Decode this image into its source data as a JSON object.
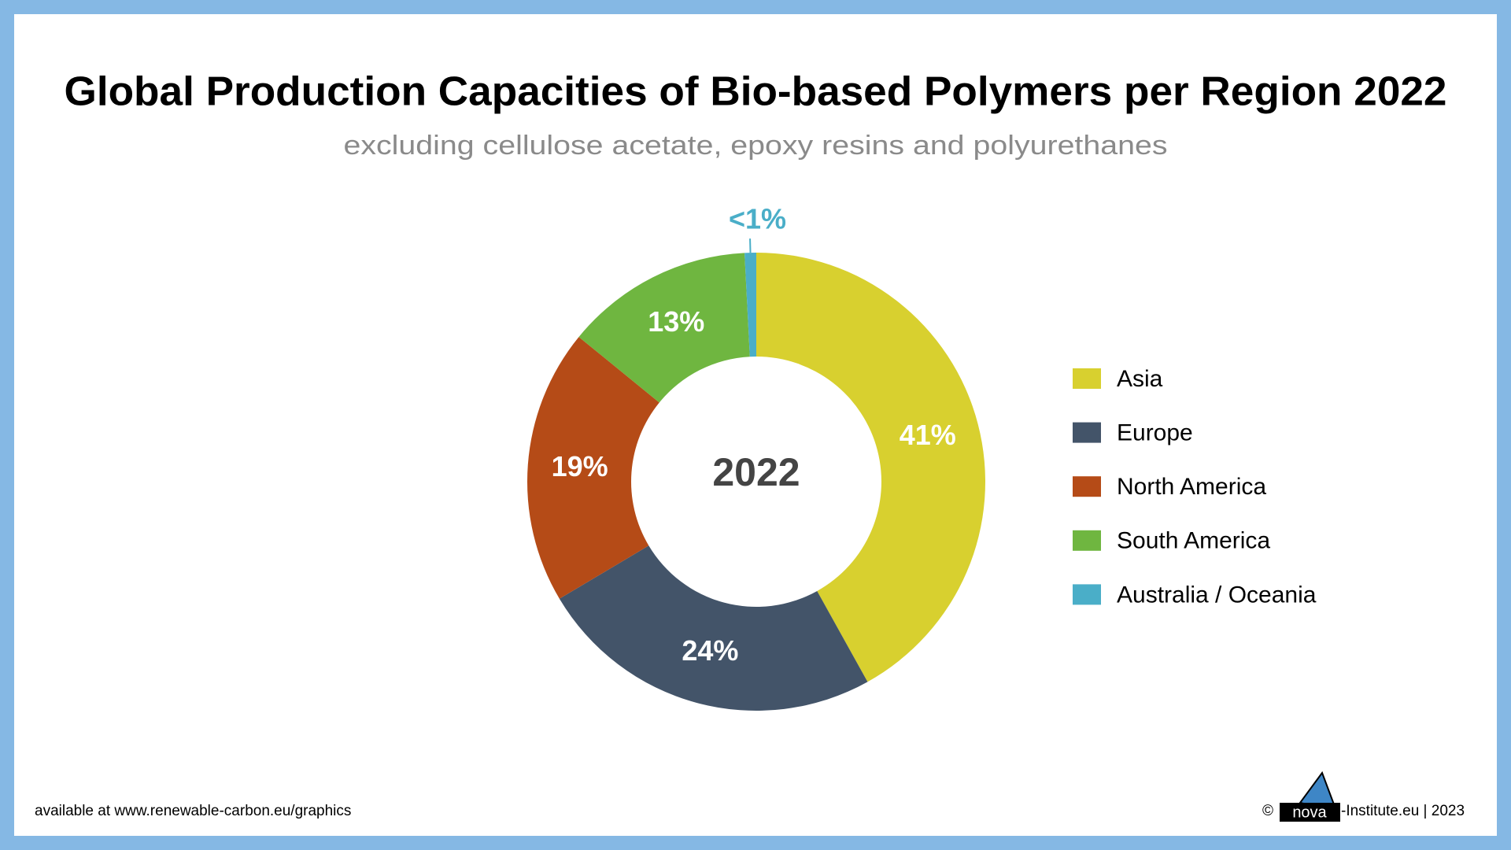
{
  "chart_data": {
    "type": "pie",
    "title": "Global Production Capacities of Bio-based Polymers per Region 2022",
    "subtitle": "excluding cellulose acetate, epoxy resins and polyurethanes",
    "center_label": "2022",
    "categories": [
      "Asia",
      "Europe",
      "North America",
      "South America",
      "Australia / Oceania"
    ],
    "values": [
      41,
      24,
      19,
      13,
      0.8
    ],
    "value_labels": [
      "41%",
      "24%",
      "19%",
      "13%",
      "<1%"
    ],
    "colors": [
      "#d8d02f",
      "#435469",
      "#b54b17",
      "#6fb640",
      "#4aaec8"
    ],
    "legend": "right"
  },
  "footer": {
    "left": "available at www.renewable-carbon.eu/graphics",
    "copyright": "©",
    "logo": "nova",
    "right": "-Institute.eu | 2023"
  }
}
